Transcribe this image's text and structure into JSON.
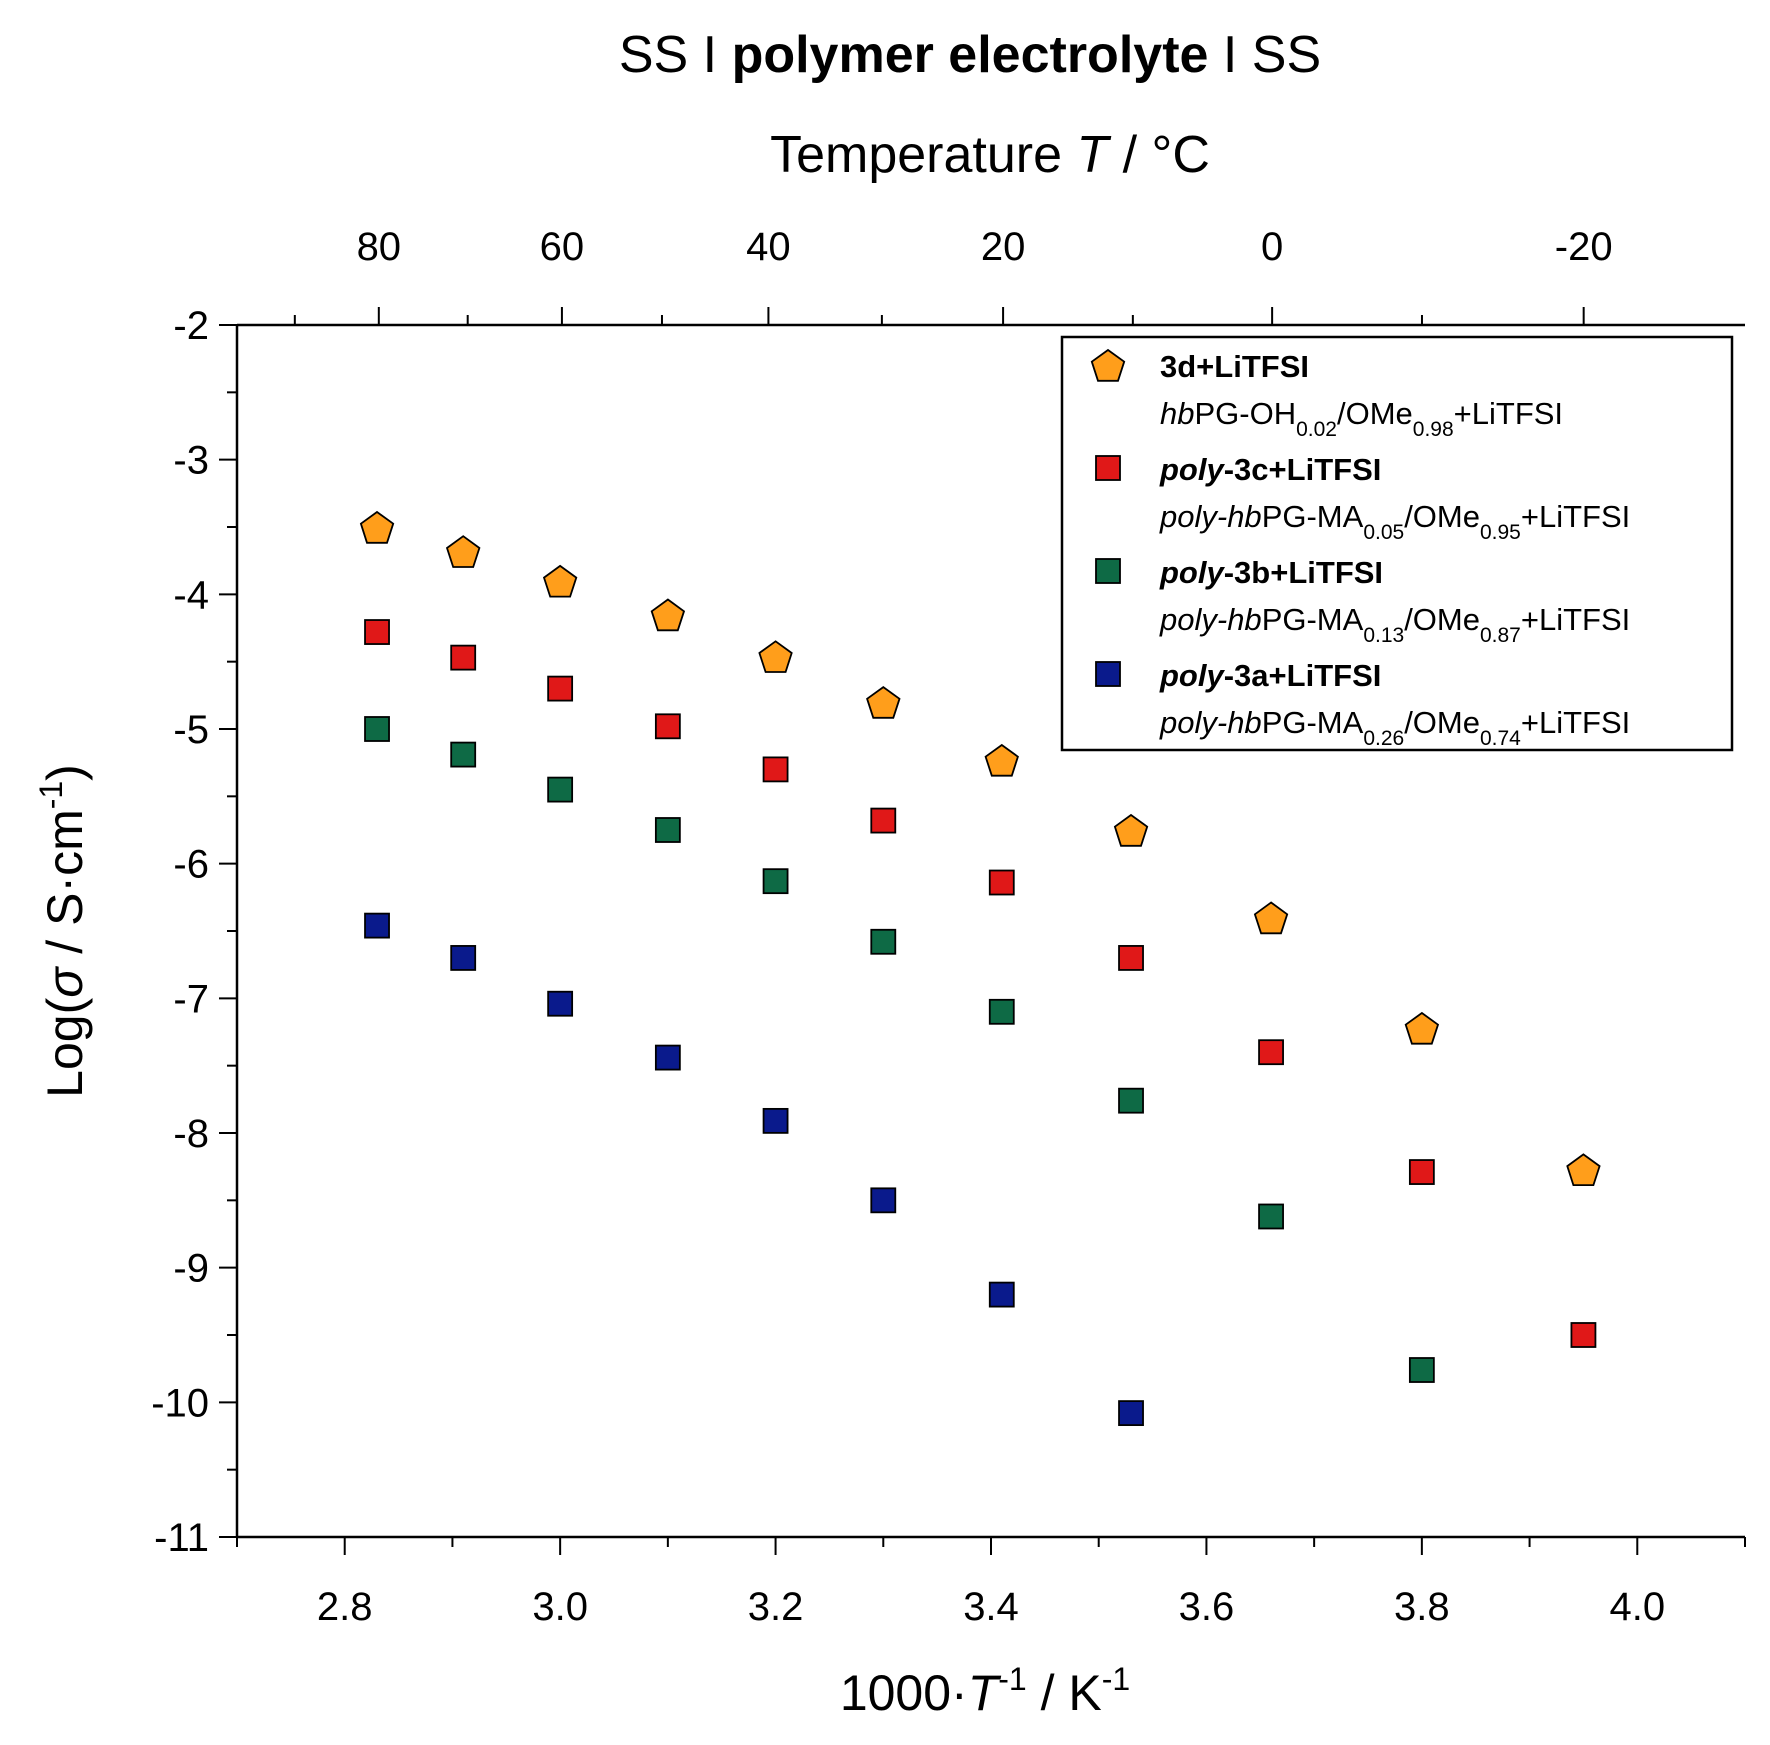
{
  "chart_data": {
    "type": "scatter",
    "title": {
      "prefix": "SS I ",
      "bold": "polymer electrolyte",
      "suffix": " I SS"
    },
    "top_axis": {
      "label_prefix": "Temperature ",
      "label_var": "T",
      "label_suffix": " / °C",
      "ticks": [
        80,
        60,
        40,
        20,
        0,
        -20
      ]
    },
    "xaxis": {
      "label_prefix": "1000·",
      "label_var": "T",
      "label_sup1": "-1",
      "label_mid": " / K",
      "label_sup2": "-1",
      "range": [
        2.7,
        4.1
      ],
      "ticks": [
        "2.8",
        "3.0",
        "3.2",
        "3.4",
        "3.6",
        "3.8",
        "4.0"
      ]
    },
    "yaxis": {
      "label_prefix": "Log(",
      "label_var": "σ",
      "label_mid": " / S·cm",
      "label_sup": "-1",
      "label_suffix": ")",
      "range": [
        -11,
        -2
      ],
      "ticks": [
        "-2",
        "-3",
        "-4",
        "-5",
        "-6",
        "-7",
        "-8",
        "-9",
        "-10",
        "-11"
      ]
    },
    "series": [
      {
        "name": "3d+LiTFSI",
        "sub_parts": [
          {
            "t": "hb",
            "s": "i"
          },
          {
            "t": "PG-OH"
          },
          {
            "t": "0.02",
            "s": "sub"
          },
          {
            "t": "/OMe"
          },
          {
            "t": "0.98",
            "s": "sub"
          },
          {
            "t": "+LiTFSI"
          }
        ],
        "marker": "pentagon",
        "color": "#FF9E1B",
        "x": [
          2.83,
          2.91,
          3.0,
          3.1,
          3.2,
          3.3,
          3.41,
          3.53,
          3.66,
          3.8,
          3.95
        ],
        "y": [
          -3.5,
          -3.68,
          -3.9,
          -4.15,
          -4.46,
          -4.8,
          -5.23,
          -5.75,
          -6.4,
          -7.22,
          -8.27
        ]
      },
      {
        "name": "poly-3c+LiTFSI",
        "name_parts": [
          {
            "t": "poly",
            "s": "i"
          },
          {
            "t": "-3c+LiTFSI"
          }
        ],
        "sub_parts": [
          {
            "t": "poly-hb",
            "s": "i"
          },
          {
            "t": "PG-MA"
          },
          {
            "t": "0.05",
            "s": "sub"
          },
          {
            "t": "/OMe"
          },
          {
            "t": "0.95",
            "s": "sub"
          },
          {
            "t": "+LiTFSI"
          }
        ],
        "marker": "square",
        "color": "#E01818",
        "x": [
          2.83,
          2.91,
          3.0,
          3.1,
          3.2,
          3.3,
          3.41,
          3.53,
          3.66,
          3.8,
          3.95
        ],
        "y": [
          -4.28,
          -4.47,
          -4.7,
          -4.98,
          -5.3,
          -5.68,
          -6.14,
          -6.7,
          -7.4,
          -8.29,
          -9.5
        ]
      },
      {
        "name": "poly-3b+LiTFSI",
        "name_parts": [
          {
            "t": "poly",
            "s": "i"
          },
          {
            "t": "-3b+LiTFSI"
          }
        ],
        "sub_parts": [
          {
            "t": "poly-hb",
            "s": "i"
          },
          {
            "t": "PG-MA"
          },
          {
            "t": "0.13",
            "s": "sub"
          },
          {
            "t": "/OMe"
          },
          {
            "t": "0.87",
            "s": "sub"
          },
          {
            "t": "+LiTFSI"
          }
        ],
        "marker": "square",
        "color": "#0E6A45",
        "x": [
          2.83,
          2.91,
          3.0,
          3.1,
          3.2,
          3.3,
          3.41,
          3.53,
          3.66,
          3.8
        ],
        "y": [
          -5.0,
          -5.19,
          -5.45,
          -5.75,
          -6.13,
          -6.58,
          -7.1,
          -7.76,
          -8.62,
          -9.76
        ]
      },
      {
        "name": "poly-3a+LiTFSI",
        "name_parts": [
          {
            "t": "poly",
            "s": "i"
          },
          {
            "t": "-3a+LiTFSI"
          }
        ],
        "sub_parts": [
          {
            "t": "poly-hb",
            "s": "i"
          },
          {
            "t": "PG-MA"
          },
          {
            "t": "0.26",
            "s": "sub"
          },
          {
            "t": "/OMe"
          },
          {
            "t": "0.74",
            "s": "sub"
          },
          {
            "t": "+LiTFSI"
          }
        ],
        "marker": "square",
        "color": "#0A1A8C",
        "x": [
          2.83,
          2.91,
          3.0,
          3.1,
          3.2,
          3.3,
          3.41,
          3.53
        ],
        "y": [
          -6.46,
          -6.7,
          -7.04,
          -7.44,
          -7.91,
          -8.5,
          -9.2,
          -10.08
        ]
      }
    ]
  }
}
